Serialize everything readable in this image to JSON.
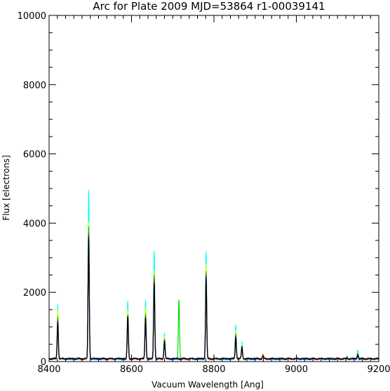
{
  "chart_data": {
    "type": "line",
    "title": "Arc for Plate 2009  MJD=53864  r1-00039141",
    "xlabel": "Vacuum Wavelength [Ang]",
    "ylabel": "Flux [electrons]",
    "xlim": [
      8400,
      9200
    ],
    "ylim": [
      0,
      10000
    ],
    "xticks": [
      8400,
      8600,
      8800,
      9000,
      9200
    ],
    "yticks": [
      0,
      2000,
      4000,
      6000,
      8000,
      10000
    ],
    "grid": false,
    "baseline": 80,
    "series": [
      {
        "color": "#00ffff",
        "peaks": [
          {
            "x": 8421,
            "y": 1650
          },
          {
            "x": 8496,
            "y": 4950
          },
          {
            "x": 8591,
            "y": 1750
          },
          {
            "x": 8634,
            "y": 1780
          },
          {
            "x": 8655,
            "y": 3180
          },
          {
            "x": 8680,
            "y": 820
          },
          {
            "x": 8781,
            "y": 3180
          },
          {
            "x": 8853,
            "y": 1050
          },
          {
            "x": 8868,
            "y": 580
          },
          {
            "x": 8919,
            "y": 230
          },
          {
            "x": 9123,
            "y": 170
          },
          {
            "x": 9149,
            "y": 300
          }
        ]
      },
      {
        "color": "#ffff00",
        "peaks": [
          {
            "x": 8421,
            "y": 1500
          },
          {
            "x": 8496,
            "y": 4050
          },
          {
            "x": 8591,
            "y": 1500
          },
          {
            "x": 8634,
            "y": 1550
          },
          {
            "x": 8655,
            "y": 2650
          },
          {
            "x": 8680,
            "y": 720
          },
          {
            "x": 8781,
            "y": 2800
          },
          {
            "x": 8853,
            "y": 900
          },
          {
            "x": 8868,
            "y": 500
          },
          {
            "x": 8919,
            "y": 200
          },
          {
            "x": 9149,
            "y": 250
          }
        ]
      },
      {
        "color": "#00dd00",
        "peaks": [
          {
            "x": 8421,
            "y": 1300
          },
          {
            "x": 8496,
            "y": 3900
          },
          {
            "x": 8591,
            "y": 1350
          },
          {
            "x": 8634,
            "y": 1400
          },
          {
            "x": 8655,
            "y": 2500
          },
          {
            "x": 8680,
            "y": 650
          },
          {
            "x": 8715,
            "y": 1780
          },
          {
            "x": 8781,
            "y": 2600
          },
          {
            "x": 8853,
            "y": 800
          },
          {
            "x": 8868,
            "y": 450
          },
          {
            "x": 8919,
            "y": 180
          },
          {
            "x": 9149,
            "y": 230
          }
        ]
      },
      {
        "color": "#ff0000",
        "peaks": [
          {
            "x": 8421,
            "y": 1200
          },
          {
            "x": 8496,
            "y": 3700
          },
          {
            "x": 8591,
            "y": 1250
          },
          {
            "x": 8634,
            "y": 1300
          },
          {
            "x": 8655,
            "y": 2400
          },
          {
            "x": 8680,
            "y": 600
          },
          {
            "x": 8781,
            "y": 2500
          },
          {
            "x": 8853,
            "y": 750
          },
          {
            "x": 8868,
            "y": 430
          },
          {
            "x": 8919,
            "y": 170
          },
          {
            "x": 9149,
            "y": 210
          }
        ]
      },
      {
        "color": "#0000ff",
        "peaks": [
          {
            "x": 8421,
            "y": 1150
          },
          {
            "x": 8496,
            "y": 3600
          },
          {
            "x": 8591,
            "y": 1200
          },
          {
            "x": 8634,
            "y": 1250
          },
          {
            "x": 8655,
            "y": 2300
          },
          {
            "x": 8680,
            "y": 580
          },
          {
            "x": 8781,
            "y": 2450
          },
          {
            "x": 8853,
            "y": 720
          },
          {
            "x": 8868,
            "y": 420
          },
          {
            "x": 8919,
            "y": 160
          },
          {
            "x": 9149,
            "y": 200
          }
        ]
      },
      {
        "color": "#000000",
        "peaks": [
          {
            "x": 8421,
            "y": 1100
          },
          {
            "x": 8496,
            "y": 3550
          },
          {
            "x": 8591,
            "y": 1300
          },
          {
            "x": 8634,
            "y": 1250
          },
          {
            "x": 8655,
            "y": 2250
          },
          {
            "x": 8680,
            "y": 600
          },
          {
            "x": 8781,
            "y": 2400
          },
          {
            "x": 8853,
            "y": 700
          },
          {
            "x": 8868,
            "y": 400
          },
          {
            "x": 8919,
            "y": 150
          },
          {
            "x": 9123,
            "y": 120
          },
          {
            "x": 9149,
            "y": 180
          }
        ]
      }
    ]
  }
}
